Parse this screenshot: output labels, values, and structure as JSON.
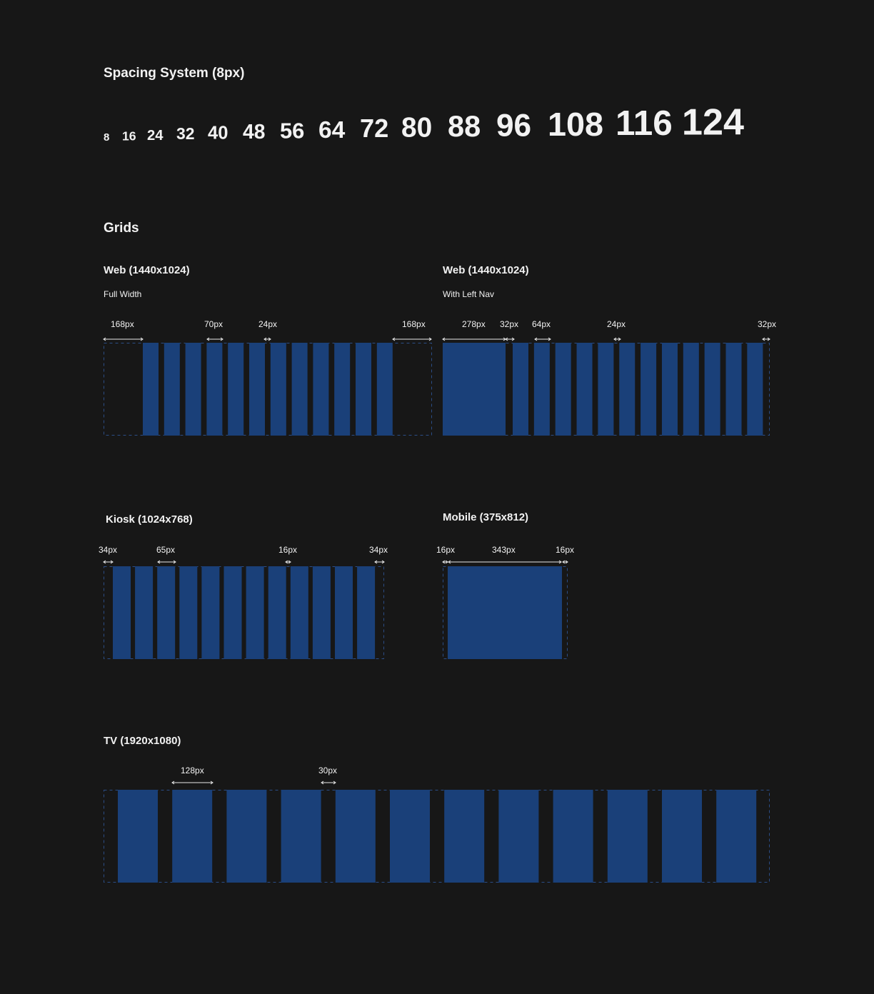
{
  "spacing": {
    "title": "Spacing System (8px)",
    "values": [
      "8",
      "16",
      "24",
      "32",
      "40",
      "48",
      "56",
      "64",
      "72",
      "80",
      "88",
      "96",
      "108",
      "116",
      "124"
    ]
  },
  "grids": {
    "title": "Grids",
    "items": [
      {
        "title": "Web (1440x1024)",
        "subtitle": "Full Width",
        "labels": [
          "168px",
          "70px",
          "24px",
          "168px"
        ]
      },
      {
        "title": "Web (1440x1024)",
        "subtitle": "With Left Nav",
        "labels": [
          "278px",
          "32px",
          "64px",
          "24px",
          "32px"
        ]
      },
      {
        "title": "Kiosk (1024x768)",
        "labels": [
          "34px",
          "65px",
          "16px",
          "34px"
        ]
      },
      {
        "title": "Mobile (375x812)",
        "labels": [
          "16px",
          "343px",
          "16px"
        ]
      },
      {
        "title": "TV (1920x1080)",
        "labels": [
          "128px",
          "30px"
        ]
      }
    ]
  }
}
